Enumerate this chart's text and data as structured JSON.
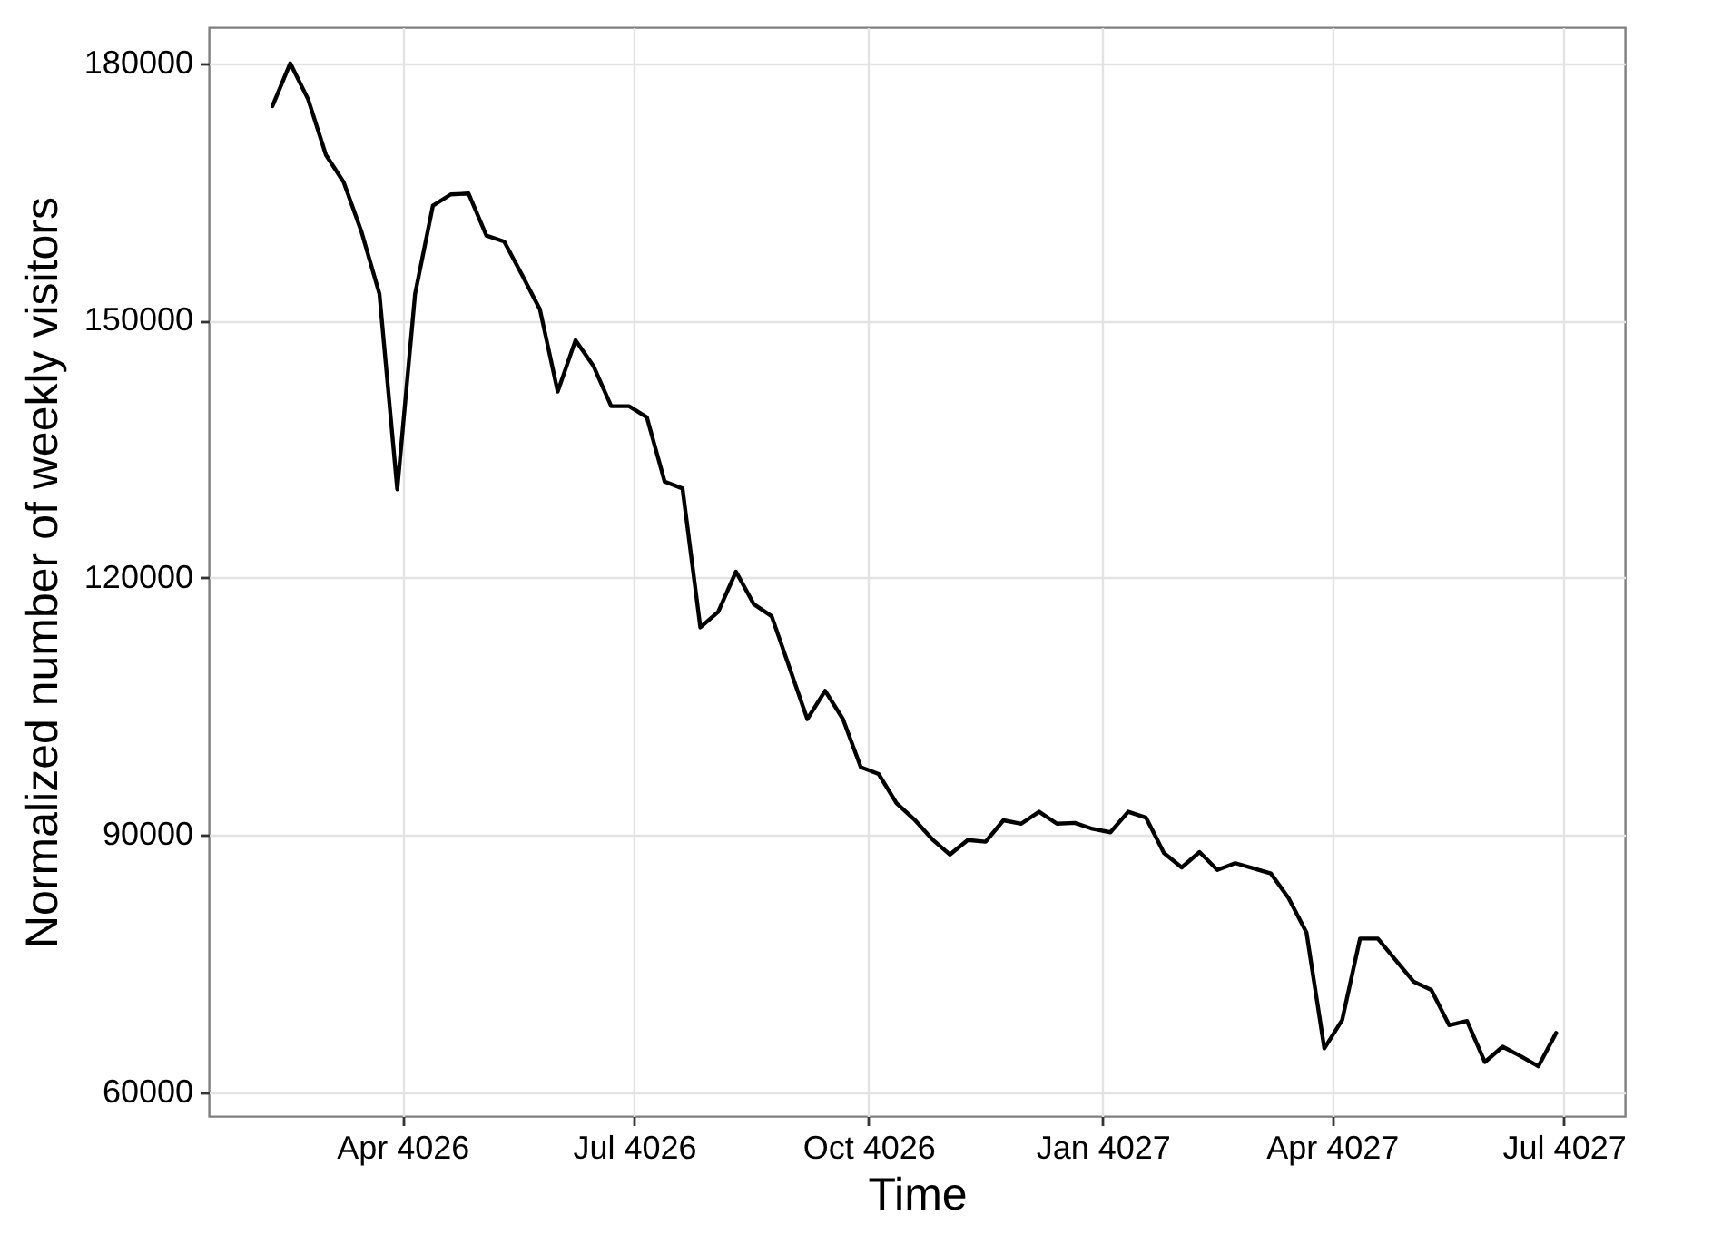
{
  "chart_data": {
    "type": "line",
    "xlabel": "Time",
    "ylabel": "Normalized number of weekly visitors",
    "x": [
      "4026-02-09",
      "4026-02-16",
      "4026-02-23",
      "4026-03-02",
      "4026-03-09",
      "4026-03-16",
      "4026-03-23",
      "4026-03-30",
      "4026-04-06",
      "4026-04-13",
      "4026-04-20",
      "4026-04-27",
      "4026-05-04",
      "4026-05-11",
      "4026-05-18",
      "4026-05-25",
      "4026-06-01",
      "4026-06-08",
      "4026-06-15",
      "4026-06-22",
      "4026-06-29",
      "4026-07-06",
      "4026-07-13",
      "4026-07-20",
      "4026-07-27",
      "4026-08-03",
      "4026-08-10",
      "4026-08-17",
      "4026-08-24",
      "4026-08-31",
      "4026-09-07",
      "4026-09-14",
      "4026-09-21",
      "4026-09-28",
      "4026-10-05",
      "4026-10-12",
      "4026-10-19",
      "4026-10-26",
      "4026-11-02",
      "4026-11-09",
      "4026-11-16",
      "4026-11-23",
      "4026-11-30",
      "4026-12-07",
      "4026-12-14",
      "4026-12-21",
      "4026-12-28",
      "4027-01-04",
      "4027-01-11",
      "4027-01-18",
      "4027-01-25",
      "4027-02-01",
      "4027-02-08",
      "4027-02-15",
      "4027-02-22",
      "4027-03-01",
      "4027-03-08",
      "4027-03-15",
      "4027-03-22",
      "4027-03-29",
      "4027-04-05",
      "4027-04-12",
      "4027-04-19",
      "4027-04-26",
      "4027-05-03",
      "4027-05-10",
      "4027-05-17",
      "4027-05-24",
      "4027-05-31",
      "4027-06-07",
      "4027-06-14",
      "4027-06-21",
      "4027-06-28"
    ],
    "series": [
      {
        "color": "#000000",
        "values": [
          175000,
          180000,
          175800,
          169300,
          166100,
          160300,
          153100,
          130300,
          153100,
          163400,
          164700,
          164800,
          159900,
          159200,
          155300,
          151300,
          141700,
          147700,
          144700,
          140000,
          140000,
          138700,
          131200,
          130400,
          114200,
          116000,
          120700,
          116900,
          115500,
          109500,
          103500,
          106800,
          103500,
          97900,
          97100,
          93700,
          91800,
          89500,
          87700,
          89400,
          89200,
          91700,
          91300,
          92700,
          91300,
          91400,
          90700,
          90300,
          92700,
          92000,
          87900,
          86200,
          88000,
          85900,
          86700,
          86100,
          85500,
          82600,
          78600,
          65100,
          68400,
          77900,
          77900,
          75400,
          72900,
          71900,
          67800,
          68300,
          63500,
          65300,
          64200,
          63000,
          66900
        ]
      }
    ],
    "xlim": [
      "4026-01-15",
      "4027-07-25"
    ],
    "xticks": [
      {
        "value": "4026-04-01",
        "label": "Apr 4026"
      },
      {
        "value": "4026-07-01",
        "label": "Jul 4026"
      },
      {
        "value": "4026-10-01",
        "label": "Oct 4026"
      },
      {
        "value": "4027-01-01",
        "label": "Jan 4027"
      },
      {
        "value": "4027-04-01",
        "label": "Apr 4027"
      },
      {
        "value": "4027-07-01",
        "label": "Jul 4027"
      }
    ],
    "ylim": [
      57200,
      184200
    ],
    "yticks": [
      60000,
      90000,
      120000,
      150000,
      180000
    ],
    "grid": true,
    "marker": "none",
    "line_style": "solid"
  }
}
